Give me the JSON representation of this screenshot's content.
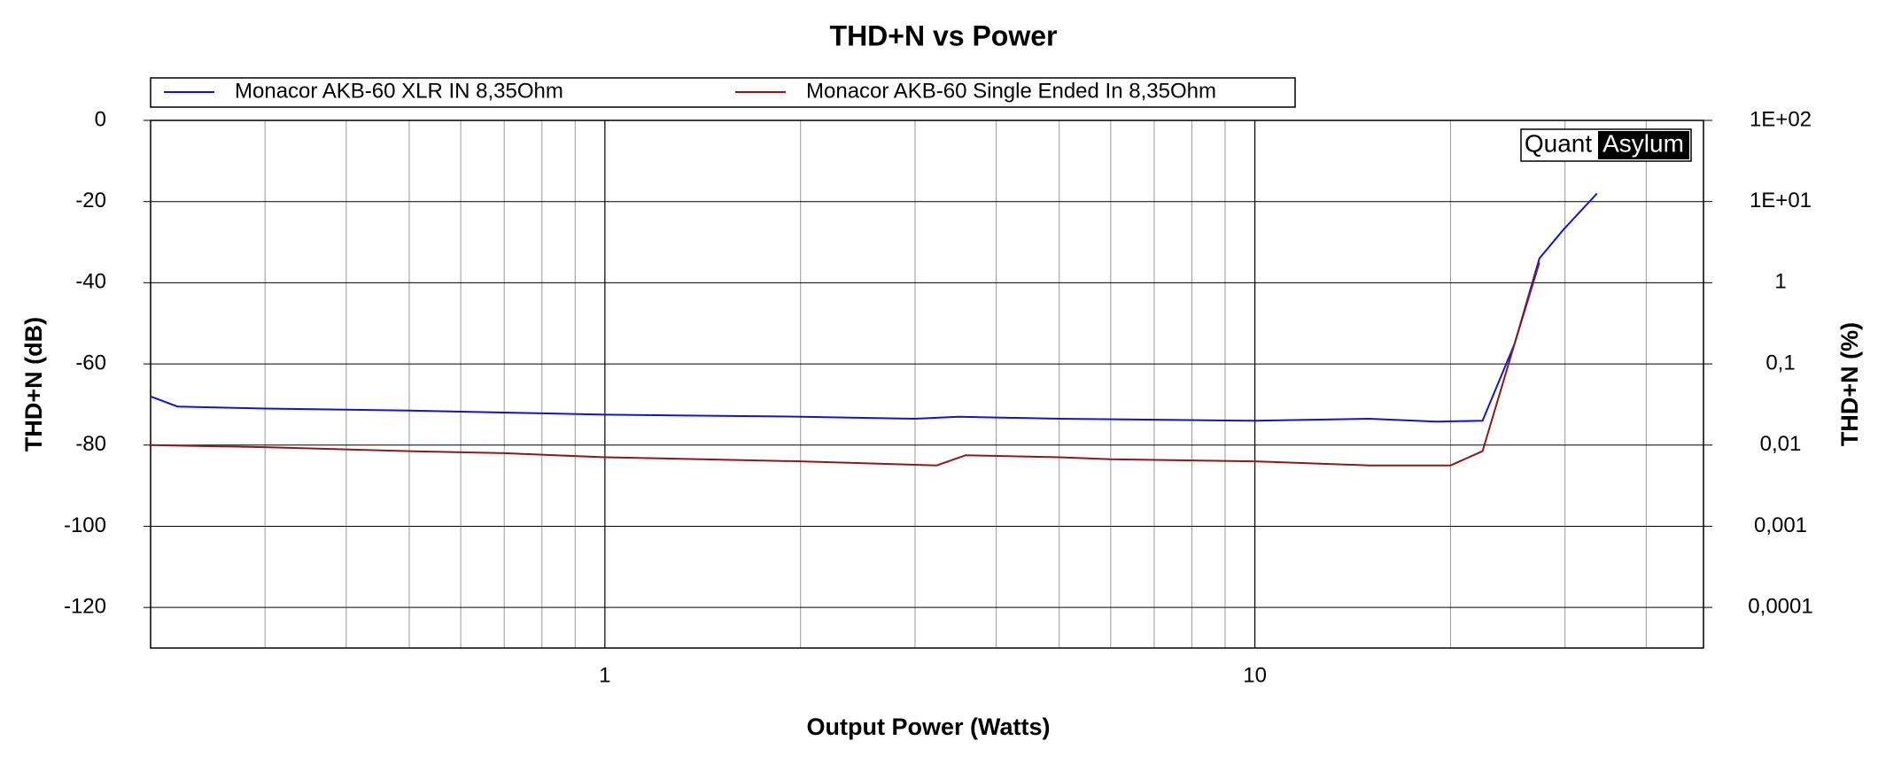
{
  "chart_data": {
    "type": "line",
    "title": "THD+N vs Power",
    "x_label": "Output Power (Watts)",
    "y_label": "THD+N (dB)",
    "y2_label": "THD+N (%)",
    "logo": {
      "left": "Quant",
      "right": "Asylum"
    },
    "x_log": true,
    "y2_log": true,
    "grid": true,
    "minor_grid": true,
    "legend": "top",
    "xlim": [
      0.2,
      49
    ],
    "xticks": [
      1,
      10
    ],
    "ylim": [
      -130,
      0
    ],
    "yticks": [
      0,
      -20,
      -40,
      -60,
      -80,
      -100,
      -120
    ],
    "y2lim": [
      3.16e-05,
      100
    ],
    "y2ticks": [
      {
        "value": 100,
        "label": "1E+02"
      },
      {
        "value": 10,
        "label": "1E+01"
      },
      1,
      {
        "value": 0.1,
        "label": "0,1"
      },
      {
        "value": 0.01,
        "label": "0,01"
      },
      {
        "value": 0.001,
        "label": "0,001"
      },
      {
        "value": 0.0001,
        "label": "0,0001"
      }
    ],
    "series": [
      {
        "name": "Monacor AKB-60 XLR IN 8,35Ohm",
        "color": "#1414c8",
        "x": [
          0.2,
          0.22,
          0.3,
          0.5,
          1,
          2,
          3,
          3.5,
          5,
          10,
          15,
          19,
          22.4,
          25.1,
          27.4,
          29.8,
          33.6
        ],
        "values": [
          -68,
          -70.5,
          -71,
          -71.5,
          -72.5,
          -73,
          -73.5,
          -73,
          -73.5,
          -74,
          -73.5,
          -74.2,
          -74,
          -55,
          -34,
          -27,
          -18
        ]
      },
      {
        "name": "Monacor AKB-60 Single Ended In 8,35Ohm",
        "color": "#8b1a1a",
        "x": [
          0.2,
          0.3,
          0.5,
          0.7,
          1,
          2,
          3.24,
          3.59,
          5,
          6,
          10,
          15,
          20,
          22.4,
          25.1,
          27.4
        ],
        "values": [
          -80,
          -80.5,
          -81.5,
          -82,
          -83,
          -84,
          -85,
          -82.5,
          -83,
          -83.5,
          -84,
          -85,
          -85,
          -81.5,
          -55,
          -35
        ]
      }
    ]
  }
}
